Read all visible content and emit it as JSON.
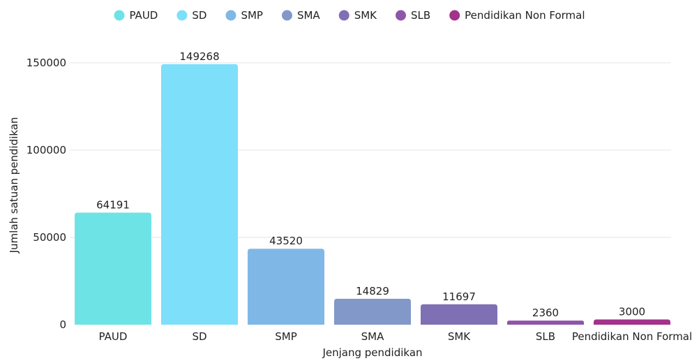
{
  "chart_data": {
    "type": "bar",
    "title": "",
    "xlabel": "Jenjang pendidikan",
    "ylabel": "Jumlah satuan pendidikan",
    "ylim": [
      0,
      160000
    ],
    "yticks": [
      0,
      50000,
      100000,
      150000
    ],
    "grid": true,
    "legend_position": "top",
    "categories": [
      "PAUD",
      "SD",
      "SMP",
      "SMA",
      "SMK",
      "SLB",
      "Pendidikan Non Formal"
    ],
    "values": [
      64191,
      149268,
      43520,
      14829,
      11697,
      2360,
      3000
    ],
    "colors": [
      "#6ee3e6",
      "#7ddff9",
      "#7fb8e6",
      "#8298c9",
      "#7f70b3",
      "#8f55a8",
      "#a3328b"
    ]
  }
}
